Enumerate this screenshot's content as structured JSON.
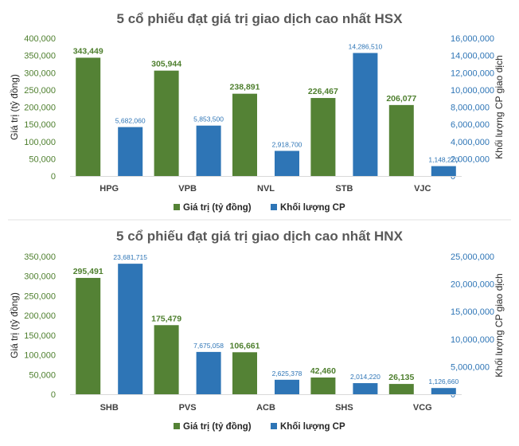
{
  "colors": {
    "value": "#548235",
    "volume": "#2e75b6"
  },
  "chart_data": [
    {
      "type": "bar",
      "title": "5 cổ phiếu đạt giá trị giao dịch cao nhất HSX",
      "categories": [
        "HPG",
        "VPB",
        "NVL",
        "STB",
        "VJC"
      ],
      "ylabel": "Giá trị (tỷ đồng)",
      "ylabel_right": "Khối lượng CP giao dịch",
      "ylim": [
        0,
        400000
      ],
      "ylim_right": [
        0,
        16000000
      ],
      "yticks": [
        "400,000",
        "350,000",
        "300,000",
        "250,000",
        "200,000",
        "150,000",
        "100,000",
        "50,000",
        "0"
      ],
      "yticks_right": [
        "16,000,000",
        "14,000,000",
        "12,000,000",
        "10,000,000",
        "8,000,000",
        "6,000,000",
        "4,000,000",
        "2,000,000",
        "0"
      ],
      "legend_position": "bottom",
      "series": [
        {
          "name": "Giá trị (tỷ đồng)",
          "axis": "left",
          "values": [
            343449,
            305944,
            238891,
            226467,
            206077
          ],
          "labels": [
            "343,449",
            "305,944",
            "238,891",
            "226,467",
            "206,077"
          ]
        },
        {
          "name": "Khối lượng CP",
          "axis": "right",
          "values": [
            5682060,
            5853500,
            2918700,
            14286510,
            1148220
          ],
          "labels": [
            "5,682,060",
            "5,853,500",
            "2,918,700",
            "14,286,510",
            "1,148,220"
          ]
        }
      ]
    },
    {
      "type": "bar",
      "title": "5 cổ phiếu đạt giá trị giao dịch cao nhất HNX",
      "categories": [
        "SHB",
        "PVS",
        "ACB",
        "SHS",
        "VCG"
      ],
      "ylabel": "Giá trị (tỷ đồng)",
      "ylabel_right": "Khối lượng CP giao dịch",
      "ylim": [
        0,
        350000
      ],
      "ylim_right": [
        0,
        25000000
      ],
      "yticks": [
        "350,000",
        "300,000",
        "250,000",
        "200,000",
        "150,000",
        "100,000",
        "50,000",
        "0"
      ],
      "yticks_right": [
        "25,000,000",
        "20,000,000",
        "15,000,000",
        "10,000,000",
        "5,000,000",
        "0"
      ],
      "legend_position": "bottom",
      "series": [
        {
          "name": "Giá trị (tỷ đồng)",
          "axis": "left",
          "values": [
            295491,
            175479,
            106661,
            42460,
            26135
          ],
          "labels": [
            "295,491",
            "175,479",
            "106,661",
            "42,460",
            "26,135"
          ]
        },
        {
          "name": "Khối lượng CP",
          "axis": "right",
          "values": [
            23681715,
            7675058,
            2625378,
            2014220,
            1126660
          ],
          "labels": [
            "23,681,715",
            "7,675,058",
            "2,625,378",
            "2,014,220",
            "1,126,660"
          ]
        }
      ]
    }
  ]
}
